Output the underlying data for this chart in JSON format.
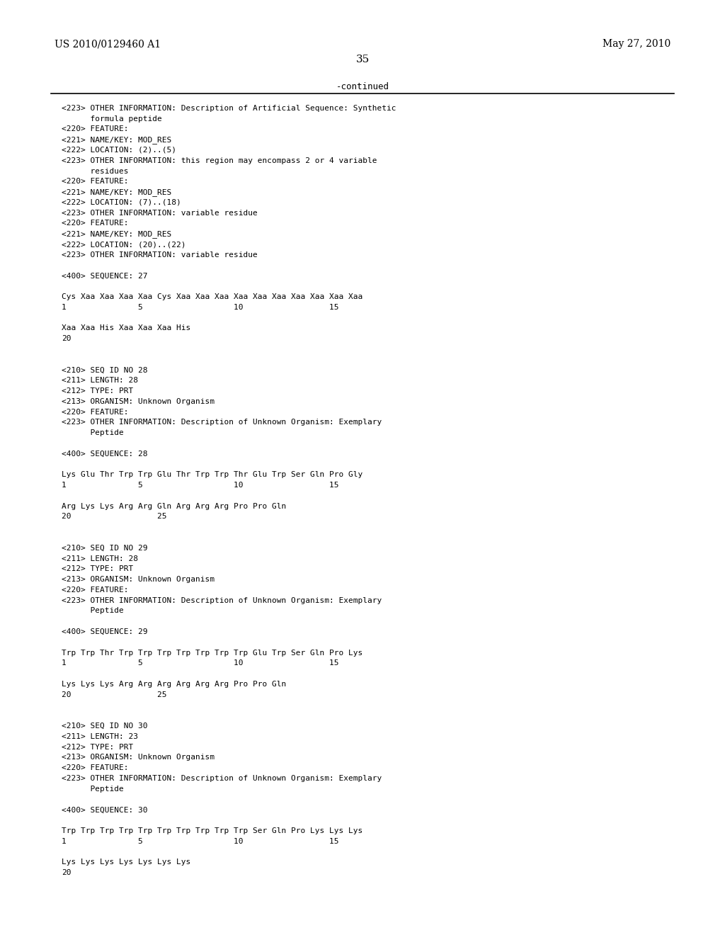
{
  "header_left": "US 2010/0129460 A1",
  "header_right": "May 27, 2010",
  "page_number": "35",
  "continued_label": "-continued",
  "background_color": "#ffffff",
  "text_color": "#000000",
  "font_size": 8.5,
  "mono_font_size": 8.0,
  "lines": [
    "<223> OTHER INFORMATION: Description of Artificial Sequence: Synthetic",
    "      formula peptide",
    "<220> FEATURE:",
    "<221> NAME/KEY: MOD_RES",
    "<222> LOCATION: (2)..(5)",
    "<223> OTHER INFORMATION: this region may encompass 2 or 4 variable",
    "      residues",
    "<220> FEATURE:",
    "<221> NAME/KEY: MOD_RES",
    "<222> LOCATION: (7)..(18)",
    "<223> OTHER INFORMATION: variable residue",
    "<220> FEATURE:",
    "<221> NAME/KEY: MOD_RES",
    "<222> LOCATION: (20)..(22)",
    "<223> OTHER INFORMATION: variable residue",
    "",
    "<400> SEQUENCE: 27",
    "",
    "Cys Xaa Xaa Xaa Xaa Cys Xaa Xaa Xaa Xaa Xaa Xaa Xaa Xaa Xaa Xaa",
    "1               5                   10                  15",
    "",
    "Xaa Xaa His Xaa Xaa Xaa His",
    "20",
    "",
    "",
    "<210> SEQ ID NO 28",
    "<211> LENGTH: 28",
    "<212> TYPE: PRT",
    "<213> ORGANISM: Unknown Organism",
    "<220> FEATURE:",
    "<223> OTHER INFORMATION: Description of Unknown Organism: Exemplary",
    "      Peptide",
    "",
    "<400> SEQUENCE: 28",
    "",
    "Lys Glu Thr Trp Trp Glu Thr Trp Trp Thr Glu Trp Ser Gln Pro Gly",
    "1               5                   10                  15",
    "",
    "Arg Lys Lys Arg Arg Gln Arg Arg Arg Pro Pro Gln",
    "20                  25",
    "",
    "",
    "<210> SEQ ID NO 29",
    "<211> LENGTH: 28",
    "<212> TYPE: PRT",
    "<213> ORGANISM: Unknown Organism",
    "<220> FEATURE:",
    "<223> OTHER INFORMATION: Description of Unknown Organism: Exemplary",
    "      Peptide",
    "",
    "<400> SEQUENCE: 29",
    "",
    "Trp Trp Thr Trp Trp Trp Trp Trp Trp Trp Glu Trp Ser Gln Pro Lys",
    "1               5                   10                  15",
    "",
    "Lys Lys Lys Arg Arg Arg Arg Arg Arg Pro Pro Gln",
    "20                  25",
    "",
    "",
    "<210> SEQ ID NO 30",
    "<211> LENGTH: 23",
    "<212> TYPE: PRT",
    "<213> ORGANISM: Unknown Organism",
    "<220> FEATURE:",
    "<223> OTHER INFORMATION: Description of Unknown Organism: Exemplary",
    "      Peptide",
    "",
    "<400> SEQUENCE: 30",
    "",
    "Trp Trp Trp Trp Trp Trp Trp Trp Trp Trp Ser Gln Pro Lys Lys Lys",
    "1               5                   10                  15",
    "",
    "Lys Lys Lys Lys Lys Lys Lys",
    "20"
  ]
}
